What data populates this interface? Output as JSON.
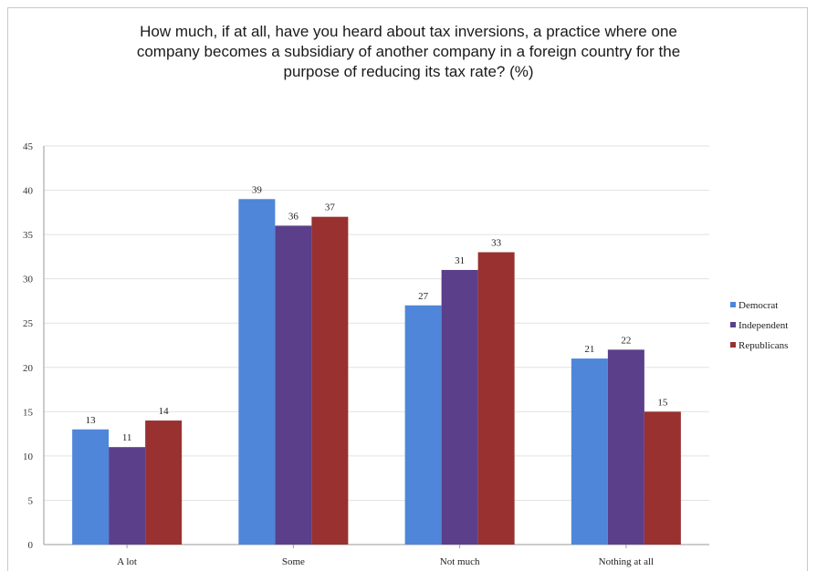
{
  "chart_data": {
    "type": "bar",
    "title": "How much, if at all, have you heard about tax inversions, a practice where one\ncompany becomes a subsidiary of another company in a foreign country for the\npurpose of reducing its tax rate? (%)",
    "categories": [
      "A lot",
      "Some",
      "Not much",
      "Nothing at all"
    ],
    "series": [
      {
        "name": "Democrat",
        "values": [
          13,
          39,
          27,
          21
        ],
        "color": "#4f86d9"
      },
      {
        "name": "Independent",
        "values": [
          11,
          36,
          31,
          22
        ],
        "color": "#5b3f8a"
      },
      {
        "name": "Republicans",
        "values": [
          14,
          37,
          33,
          15
        ],
        "color": "#98312f"
      }
    ],
    "ylim": [
      0,
      45
    ],
    "yticks": [
      0,
      5,
      10,
      15,
      20,
      25,
      30,
      35,
      40,
      45
    ],
    "grid": true,
    "legend": "right",
    "xlabel": "",
    "ylabel": ""
  }
}
